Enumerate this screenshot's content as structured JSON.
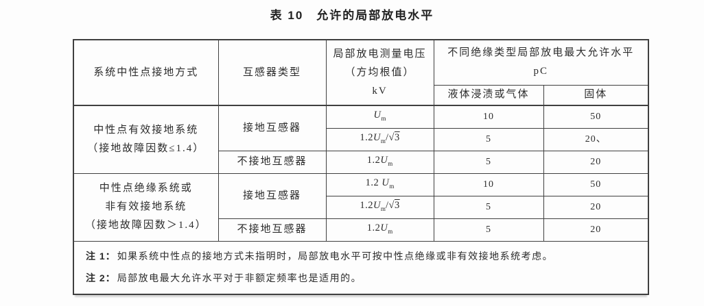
{
  "colors": {
    "ink": "#2b2b2b",
    "border": "#3f3f3f",
    "paper": "#fdfdfd"
  },
  "title": "表 10　允许的局部放电水平",
  "table": {
    "header": {
      "system": "系统中性点接地方式",
      "transformer": "互感器类型",
      "voltage_lines": [
        "局部放电测量电压",
        "（方均根值）",
        "kV"
      ],
      "pd_group_lines": [
        "不同绝缘类型局部放电最大允许水平",
        "pC"
      ],
      "liquid": "液体浸渍或气体",
      "solid": "固体"
    },
    "groups": [
      {
        "system_lines": [
          "中性点有效接地系统",
          "（接地故障因数≤1.4）"
        ],
        "rows": [
          {
            "transformer": "接地互感器",
            "voltage": "Um",
            "liquid": "10",
            "solid": "50"
          },
          {
            "voltage": "1.2Um/√3",
            "liquid": "5",
            "solid": "20、"
          },
          {
            "transformer": "不接地互感器",
            "voltage": "1.2Um",
            "liquid": "5",
            "solid": "20"
          }
        ]
      },
      {
        "system_lines": [
          "中性点绝缘系统或",
          "非有效接地系统",
          "（接地故障因数＞1.4）"
        ],
        "rows": [
          {
            "transformer": "接地互感器",
            "voltage": "1.2 Um",
            "liquid": "10",
            "solid": "50"
          },
          {
            "voltage": "1.2Um/√3",
            "liquid": "5",
            "solid": "20"
          },
          {
            "transformer": "不接地互感器",
            "voltage": "1.2Um",
            "liquid": "5",
            "solid": "20"
          }
        ]
      }
    ],
    "notes": [
      {
        "label": "注 1：",
        "text": "如果系统中性点的接地方式未指明时，局部放电水平可按中性点绝缘或非有效接地系统考虑。"
      },
      {
        "label": "注 2：",
        "text": "局部放电最大允许水平对于非额定频率也是适用的。"
      }
    ]
  }
}
